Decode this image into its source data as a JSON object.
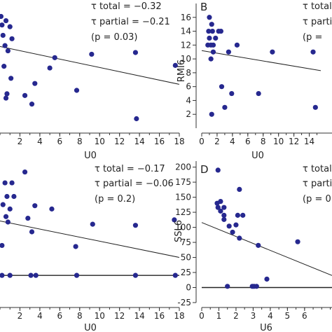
{
  "chart_data": [
    {
      "id": "A",
      "type": "scatter",
      "panel_letter": "",
      "xlabel": "U0",
      "ylabel": "",
      "xticks": [
        2,
        4,
        6,
        8,
        10,
        12,
        14,
        16,
        18
      ],
      "yticks": [],
      "xlim": [
        0,
        18
      ],
      "ylim": [
        -1.3,
        0.15
      ],
      "stats": [
        "τ total = −0.32",
        "τ partial = −0.21",
        "(p = 0.03)"
      ],
      "fit": [
        [
          0,
          -0.35
        ],
        [
          18,
          -0.79
        ]
      ],
      "zero_line": null,
      "points": [
        [
          0.1,
          0.0
        ],
        [
          0.6,
          -0.05
        ],
        [
          0.2,
          -0.1
        ],
        [
          1.0,
          -0.12
        ],
        [
          0.3,
          -0.22
        ],
        [
          1.2,
          -0.26
        ],
        [
          0.5,
          -0.34
        ],
        [
          0.8,
          -0.4
        ],
        [
          5.5,
          -0.48
        ],
        [
          0.4,
          -0.58
        ],
        [
          5.0,
          -0.6
        ],
        [
          9.2,
          -0.44
        ],
        [
          13.6,
          -0.42
        ],
        [
          17.6,
          -0.57
        ],
        [
          1.1,
          -0.72
        ],
        [
          3.5,
          -0.78
        ],
        [
          7.7,
          -0.86
        ],
        [
          0.7,
          -0.9
        ],
        [
          2.5,
          -0.92
        ],
        [
          0.6,
          -0.95
        ],
        [
          3.2,
          -1.02
        ],
        [
          13.7,
          -1.19
        ]
      ]
    },
    {
      "id": "B",
      "type": "scatter",
      "panel_letter": "B",
      "xlabel": "U0",
      "ylabel": "RMI6",
      "xticks": [
        0,
        2,
        4,
        6,
        8,
        10,
        12,
        14
      ],
      "yticks": [
        2,
        4,
        6,
        8,
        10,
        12,
        14,
        16
      ],
      "xlim": [
        0,
        15.5
      ],
      "ylim": [
        0,
        18
      ],
      "stats": [
        "τ total",
        "τ partial",
        "(p ="
      ],
      "fit": [
        [
          0,
          11.2
        ],
        [
          15.5,
          8.3
        ]
      ],
      "zero_line": null,
      "points": [
        [
          1.0,
          16
        ],
        [
          1.3,
          15
        ],
        [
          0.9,
          14
        ],
        [
          1.4,
          14
        ],
        [
          2.2,
          14
        ],
        [
          2.5,
          14
        ],
        [
          1.0,
          13
        ],
        [
          1.8,
          13
        ],
        [
          0.8,
          12
        ],
        [
          1.2,
          12
        ],
        [
          1.5,
          12
        ],
        [
          4.6,
          12
        ],
        [
          1.5,
          11
        ],
        [
          9.2,
          11
        ],
        [
          14.5,
          11
        ],
        [
          3.5,
          11
        ],
        [
          1.2,
          10
        ],
        [
          2.6,
          6
        ],
        [
          3.9,
          5
        ],
        [
          7.4,
          5
        ],
        [
          3.0,
          3
        ],
        [
          14.8,
          3
        ],
        [
          1.3,
          2
        ]
      ]
    },
    {
      "id": "C",
      "type": "scatter",
      "panel_letter": "",
      "xlabel": "U0",
      "ylabel": "",
      "xticks": [
        2,
        4,
        6,
        8,
        10,
        12,
        14,
        16,
        18
      ],
      "yticks": [],
      "xlim": [
        0,
        18
      ],
      "ylim": [
        -0.5,
        2.1
      ],
      "stats": [
        "τ total = −0.17",
        "τ partial = −0.06",
        "(p = 0.2)"
      ],
      "fit": [
        [
          0,
          1.0
        ],
        [
          18,
          0.33
        ]
      ],
      "zero_line": 0,
      "points": [
        [
          2.5,
          1.9
        ],
        [
          0.5,
          1.7
        ],
        [
          1.2,
          1.7
        ],
        [
          0.7,
          1.45
        ],
        [
          1.4,
          1.45
        ],
        [
          0.3,
          1.3
        ],
        [
          1.0,
          1.22
        ],
        [
          0.6,
          1.08
        ],
        [
          3.5,
          1.28
        ],
        [
          5.2,
          1.22
        ],
        [
          2.8,
          1.05
        ],
        [
          0.8,
          0.98
        ],
        [
          3.2,
          0.8
        ],
        [
          9.3,
          0.94
        ],
        [
          13.6,
          0.92
        ],
        [
          17.5,
          1.02
        ],
        [
          0.2,
          0.55
        ],
        [
          7.6,
          0.53
        ],
        [
          0.2,
          0
        ],
        [
          1.0,
          0
        ],
        [
          3.1,
          0
        ],
        [
          3.6,
          0
        ],
        [
          7.7,
          0
        ],
        [
          13.6,
          0
        ],
        [
          17.6,
          0
        ]
      ]
    },
    {
      "id": "D",
      "type": "scatter",
      "panel_letter": "D",
      "xlabel": "U6",
      "ylabel": "SSL6",
      "xticks": [
        0,
        1,
        2,
        3,
        4,
        5,
        6
      ],
      "yticks": [
        -25,
        0,
        25,
        50,
        75,
        100,
        125,
        150,
        175,
        200
      ],
      "xlim": [
        0,
        7.6
      ],
      "ylim": [
        -25,
        210
      ],
      "stats": [
        "τ total",
        "τ partial",
        "(p = 0."
      ],
      "fit": [
        [
          0,
          108
        ],
        [
          7.6,
          20
        ]
      ],
      "zero_line": 0,
      "points": [
        [
          0.95,
          195
        ],
        [
          2.2,
          163
        ],
        [
          0.9,
          140
        ],
        [
          1.1,
          143
        ],
        [
          0.95,
          133
        ],
        [
          1.1,
          127
        ],
        [
          1.3,
          133
        ],
        [
          1.3,
          120
        ],
        [
          2.1,
          120
        ],
        [
          2.4,
          120
        ],
        [
          1.3,
          113
        ],
        [
          1.6,
          102
        ],
        [
          2.0,
          104
        ],
        [
          1.8,
          92
        ],
        [
          2.2,
          82
        ],
        [
          3.3,
          70
        ],
        [
          5.6,
          76
        ],
        [
          3.8,
          14
        ],
        [
          1.5,
          2
        ],
        [
          2.95,
          2
        ],
        [
          3.05,
          2
        ],
        [
          3.2,
          2
        ]
      ]
    }
  ]
}
